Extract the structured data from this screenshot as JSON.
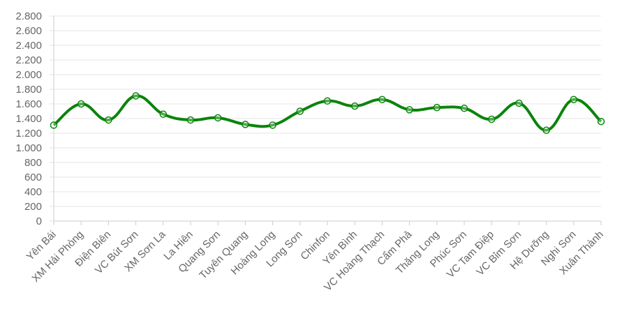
{
  "chart_data": {
    "type": "line",
    "categories": [
      "Yên Bái",
      "XM Hải Phòng",
      "Điện Biên",
      "VC Bút Sơn",
      "XM Sơn La",
      "La Hiên",
      "Quang Sơn",
      "Tuyên Quang",
      "Hoàng Long",
      "Long Sơn",
      "Chinfon",
      "Yên Bình",
      "VC Hoàng Thạch",
      "Cẩm Phả",
      "Thăng Long",
      "Phúc Sơn",
      "VC Tam Điệp",
      "VC Bỉm Sơn",
      "Hệ Dưỡng",
      "Nghi Sơn",
      "Xuân Thành"
    ],
    "values": [
      1310,
      1600,
      1380,
      1710,
      1460,
      1380,
      1410,
      1320,
      1310,
      1500,
      1640,
      1570,
      1660,
      1520,
      1550,
      1540,
      1390,
      1610,
      1240,
      1660,
      1360
    ],
    "color": "#0a840a",
    "ylim": [
      0,
      2800
    ],
    "yticks": [
      0,
      200,
      400,
      600,
      800,
      {
        "value": 1000,
        "label": "1.000"
      },
      {
        "value": 1200,
        "label": "1.200"
      },
      {
        "value": 1400,
        "label": "1.400"
      },
      {
        "value": 1600,
        "label": "1.600"
      },
      {
        "value": 1800,
        "label": "1.800"
      },
      {
        "value": 2000,
        "label": "2.000"
      },
      {
        "value": 2200,
        "label": "2.200"
      },
      {
        "value": 2400,
        "label": "2.400"
      },
      {
        "value": 2600,
        "label": "2.600"
      },
      {
        "value": 2800,
        "label": "2.800"
      }
    ],
    "grid": true
  }
}
